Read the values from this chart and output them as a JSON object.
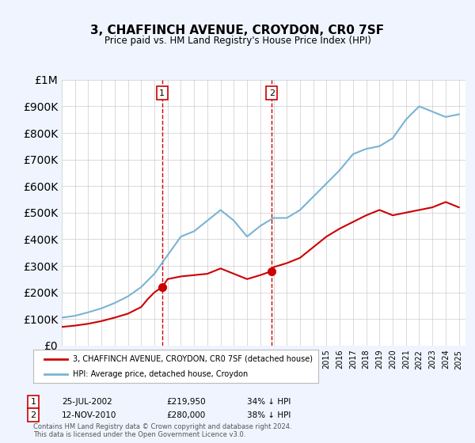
{
  "title": "3, CHAFFINCH AVENUE, CROYDON, CR0 7SF",
  "subtitle": "Price paid vs. HM Land Registry's House Price Index (HPI)",
  "background_color": "#f0f4ff",
  "plot_bg_color": "#ffffff",
  "legend_label_red": "3, CHAFFINCH AVENUE, CROYDON, CR0 7SF (detached house)",
  "legend_label_blue": "HPI: Average price, detached house, Croydon",
  "footer": "Contains HM Land Registry data © Crown copyright and database right 2024.\nThis data is licensed under the Open Government Licence v3.0.",
  "annotation1": {
    "label": "1",
    "date": "25-JUL-2002",
    "price": "£219,950",
    "pct": "34% ↓ HPI"
  },
  "annotation2": {
    "label": "2",
    "date": "12-NOV-2010",
    "price": "£280,000",
    "pct": "38% ↓ HPI"
  },
  "hpi_years": [
    1995,
    1996,
    1997,
    1998,
    1999,
    2000,
    2001,
    2002,
    2003,
    2004,
    2005,
    2006,
    2007,
    2008,
    2009,
    2010,
    2011,
    2012,
    2013,
    2014,
    2015,
    2016,
    2017,
    2018,
    2019,
    2020,
    2021,
    2022,
    2023,
    2024,
    2025
  ],
  "hpi_values": [
    105000,
    112000,
    125000,
    140000,
    160000,
    185000,
    220000,
    270000,
    340000,
    410000,
    430000,
    470000,
    510000,
    470000,
    410000,
    450000,
    480000,
    480000,
    510000,
    560000,
    610000,
    660000,
    720000,
    740000,
    750000,
    780000,
    850000,
    900000,
    880000,
    860000,
    870000
  ],
  "price_years": [
    1995.0,
    1996.0,
    1997.0,
    1998.0,
    1999.0,
    2000.0,
    2001.0,
    2001.5,
    2002.0,
    2002.58,
    2003.0,
    2004.0,
    2005.0,
    2006.0,
    2007.0,
    2008.0,
    2009.0,
    2010.0,
    2010.87,
    2011.0,
    2012.0,
    2013.0,
    2014.0,
    2015.0,
    2016.0,
    2017.0,
    2018.0,
    2019.0,
    2020.0,
    2021.0,
    2022.0,
    2023.0,
    2024.0,
    2025.0
  ],
  "price_values": [
    70000,
    75000,
    82000,
    92000,
    105000,
    120000,
    145000,
    175000,
    200000,
    219950,
    250000,
    260000,
    265000,
    270000,
    290000,
    270000,
    250000,
    265000,
    280000,
    295000,
    310000,
    330000,
    370000,
    410000,
    440000,
    465000,
    490000,
    510000,
    490000,
    500000,
    510000,
    520000,
    540000,
    520000
  ],
  "marker1_x": 2002.58,
  "marker1_y": 219950,
  "marker2_x": 2010.87,
  "marker2_y": 280000,
  "vline1_x": 2002.58,
  "vline2_x": 2010.87,
  "ylim": [
    0,
    1000000
  ],
  "xlim": [
    1995,
    2025.5
  ]
}
